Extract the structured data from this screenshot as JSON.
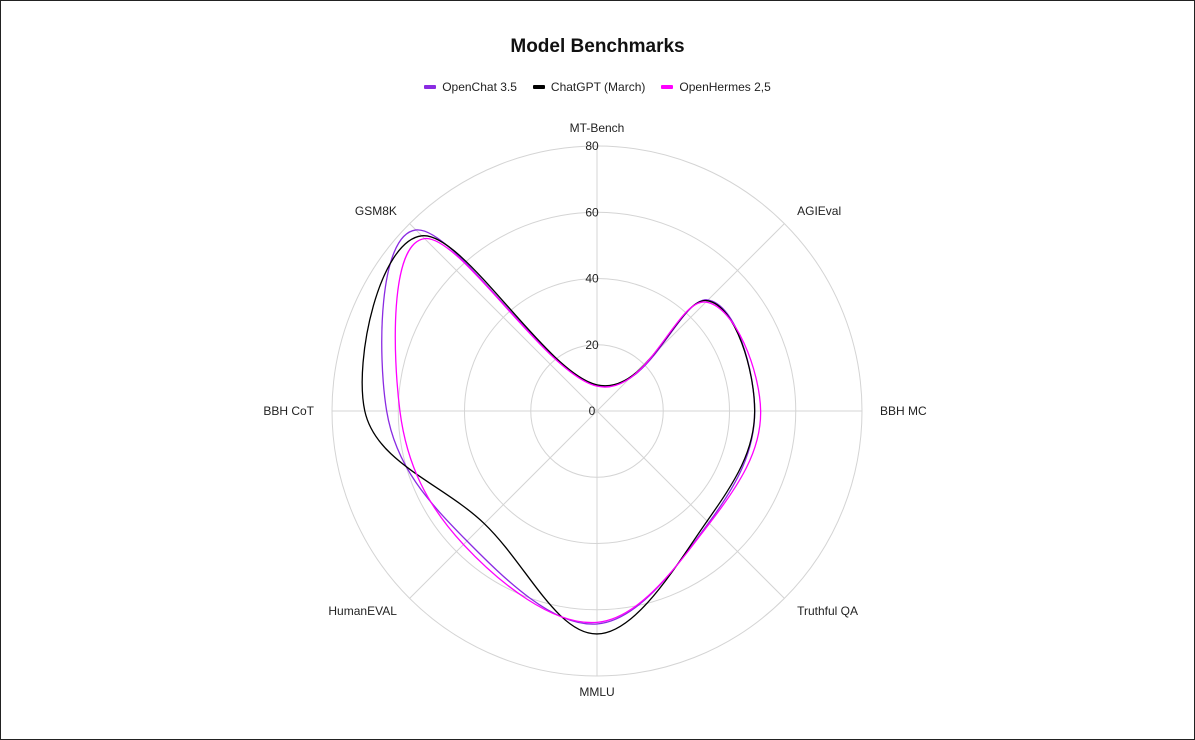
{
  "chart_data": {
    "type": "radar",
    "title": "Model Benchmarks",
    "axes": [
      "MT-Bench",
      "AGIEval",
      "BBH MC",
      "Truthful QA",
      "MMLU",
      "HumanEVAL",
      "BBH CoT",
      "GSM8K"
    ],
    "r_ticks": [
      0,
      20,
      40,
      60,
      80
    ],
    "r_range": [
      0,
      80
    ],
    "grid": true,
    "legend_position": "top",
    "series": [
      {
        "name": "OpenChat 3.5",
        "color": "#8a2be2",
        "values": [
          7.8,
          47.4,
          47.6,
          47.7,
          64.3,
          55.5,
          63.5,
          77.3
        ]
      },
      {
        "name": "ChatGPT (March)",
        "color": "#000000",
        "values": [
          7.9,
          47.1,
          47.6,
          47.0,
          67.3,
          48.1,
          70.1,
          74.8
        ]
      },
      {
        "name": "OpenHermes 2,5",
        "color": "#ff00ff",
        "values": [
          7.5,
          46.5,
          49.4,
          48.0,
          63.8,
          57.0,
          59.5,
          73.6
        ]
      }
    ]
  }
}
